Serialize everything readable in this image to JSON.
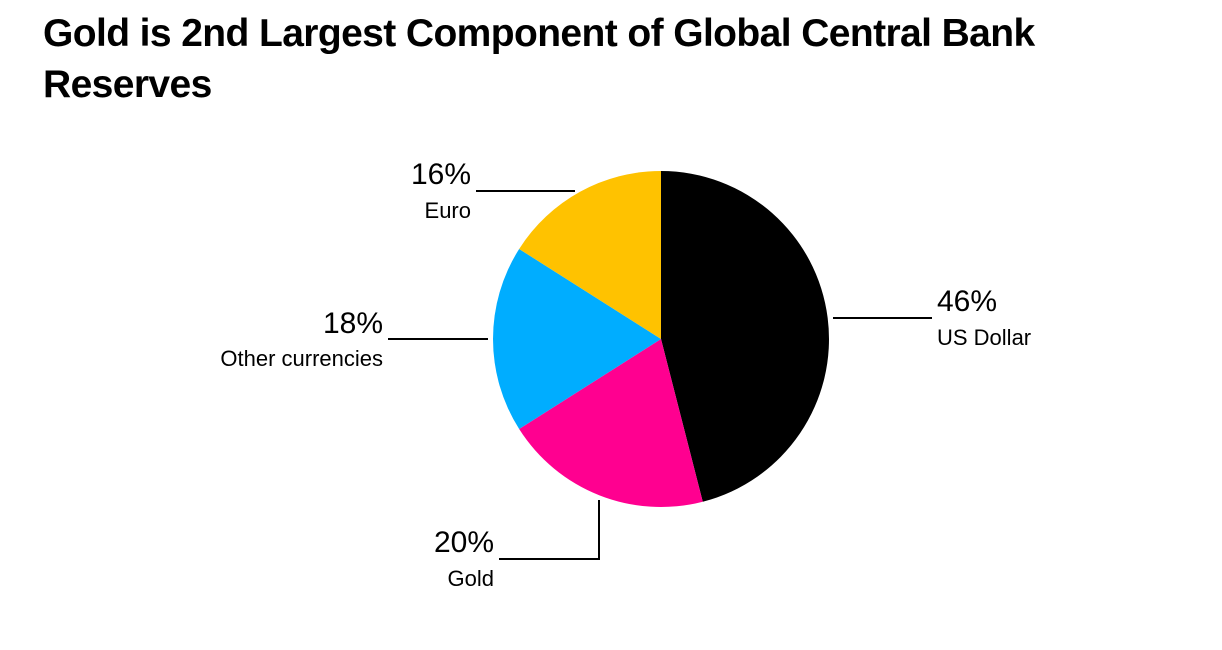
{
  "title": "Gold is 2nd Largest Component of Global Central Bank Reserves",
  "chart_data": {
    "type": "pie",
    "title": "Gold is 2nd Largest Component of Global Central Bank Reserves",
    "start_angle": "12 o'clock, clockwise",
    "slices": [
      {
        "label": "US Dollar",
        "value": 46,
        "value_label": "46%",
        "color": "#000000"
      },
      {
        "label": "Gold",
        "value": 20,
        "value_label": "20%",
        "color": "#ff0090"
      },
      {
        "label": "Other currencies",
        "value": 18,
        "value_label": "18%",
        "color": "#00adff"
      },
      {
        "label": "Euro",
        "value": 16,
        "value_label": "16%",
        "color": "#ffc200"
      }
    ],
    "categories": [
      "US Dollar",
      "Gold",
      "Other currencies",
      "Euro"
    ],
    "values": [
      46,
      20,
      18,
      16
    ],
    "units": "%",
    "legend": "direct labels with leader lines"
  }
}
